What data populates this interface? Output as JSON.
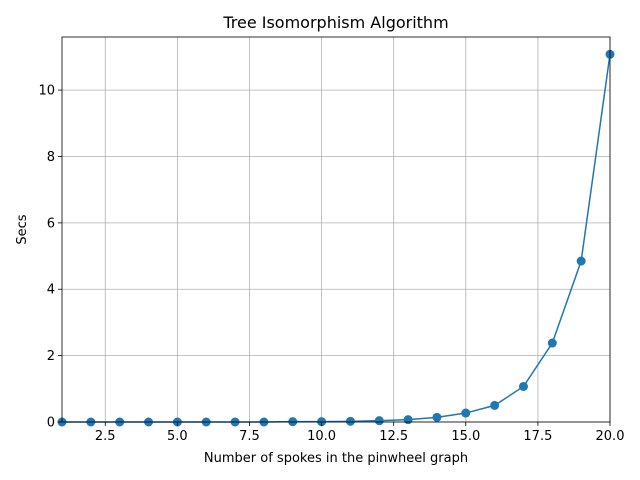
{
  "chart_data": {
    "type": "line",
    "title": "Tree Isomorphism Algorithm",
    "xlabel": "Number of spokes in the pinwheel graph",
    "ylabel": "Secs",
    "xlim": [
      1,
      20
    ],
    "ylim": [
      0,
      11.6
    ],
    "xticks": [
      2.5,
      5.0,
      7.5,
      10.0,
      12.5,
      15.0,
      17.5,
      20.0
    ],
    "xtick_labels": [
      "2.5",
      "5.0",
      "7.5",
      "10.0",
      "12.5",
      "15.0",
      "17.5",
      "20.0"
    ],
    "yticks": [
      0,
      2,
      4,
      6,
      8,
      10
    ],
    "ytick_labels": [
      "0",
      "2",
      "4",
      "6",
      "8",
      "10"
    ],
    "grid": true,
    "series": [
      {
        "color": "#1f77b4",
        "marker": "circle",
        "x": [
          1,
          2,
          3,
          4,
          5,
          6,
          7,
          8,
          9,
          10,
          11,
          12,
          13,
          14,
          15,
          16,
          17,
          18,
          19,
          20
        ],
        "y": [
          0.0,
          0.0,
          0.0,
          0.0,
          0.0,
          0.0,
          0.0,
          0.0,
          0.01,
          0.01,
          0.02,
          0.04,
          0.07,
          0.14,
          0.27,
          0.5,
          1.07,
          2.38,
          4.85,
          11.08
        ]
      }
    ]
  }
}
